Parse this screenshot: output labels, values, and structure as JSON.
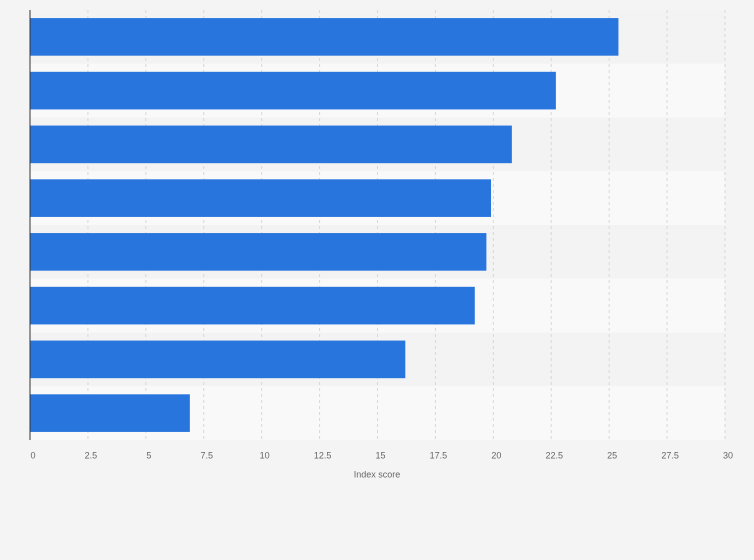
{
  "chart_data": {
    "type": "bar",
    "x_label": "Index score",
    "categories": [
      null,
      null,
      null,
      null,
      null,
      null,
      null,
      null
    ],
    "values": [
      25.4,
      22.7,
      20.8,
      19.9,
      19.7,
      19.2,
      16.2,
      6.9
    ],
    "color": "#2876dd",
    "xlim": [
      0,
      30
    ],
    "xticks": [
      0,
      2.5,
      5,
      7.5,
      10,
      12.5,
      15,
      17.5,
      20,
      22.5,
      25,
      27.5,
      30
    ],
    "grid": true
  }
}
